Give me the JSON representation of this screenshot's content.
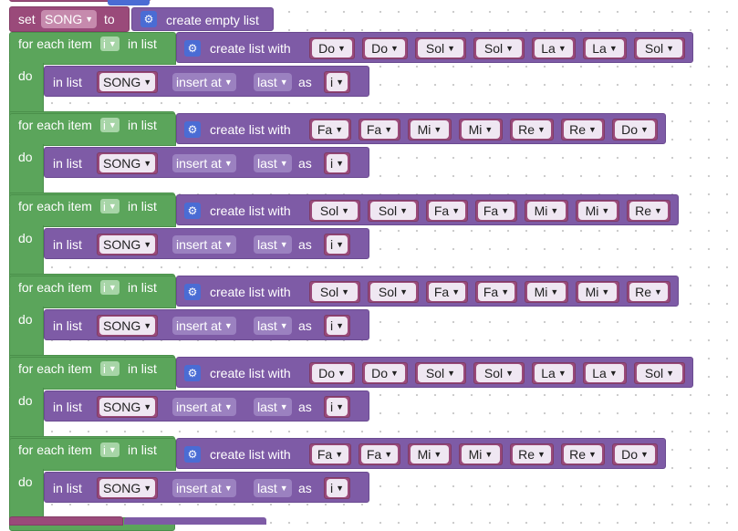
{
  "set_block": {
    "set_label": "set",
    "var_name": "SONG",
    "to_label": "to",
    "create_empty_label": "create empty list",
    "icon": "gear-icon"
  },
  "labels": {
    "for_each_item": "for each item",
    "in_list_after_var": "in list",
    "do": "do",
    "create_list_with": "create list with",
    "in_list": "in list",
    "insert_at": "insert at",
    "last": "last",
    "as": "as"
  },
  "loop_var": "i",
  "list_var": "SONG",
  "loops": [
    {
      "notes": [
        "Do",
        "Do",
        "Sol",
        "Sol",
        "La",
        "La",
        "Sol"
      ]
    },
    {
      "notes": [
        "Fa",
        "Fa",
        "Mi",
        "Mi",
        "Re",
        "Re",
        "Do"
      ]
    },
    {
      "notes": [
        "Sol",
        "Sol",
        "Fa",
        "Fa",
        "Mi",
        "Mi",
        "Re"
      ]
    },
    {
      "notes": [
        "Sol",
        "Sol",
        "Fa",
        "Fa",
        "Mi",
        "Mi",
        "Re"
      ]
    },
    {
      "notes": [
        "Do",
        "Do",
        "Sol",
        "Sol",
        "La",
        "La",
        "Sol"
      ]
    },
    {
      "notes": [
        "Fa",
        "Fa",
        "Mi",
        "Mi",
        "Re",
        "Re",
        "Do"
      ]
    }
  ],
  "colors": {
    "loop_green": "#5ba55b",
    "list_purple": "#7e5ba6",
    "variable_plum": "#9a4a7a",
    "gear_blue": "#4a6cd4"
  }
}
